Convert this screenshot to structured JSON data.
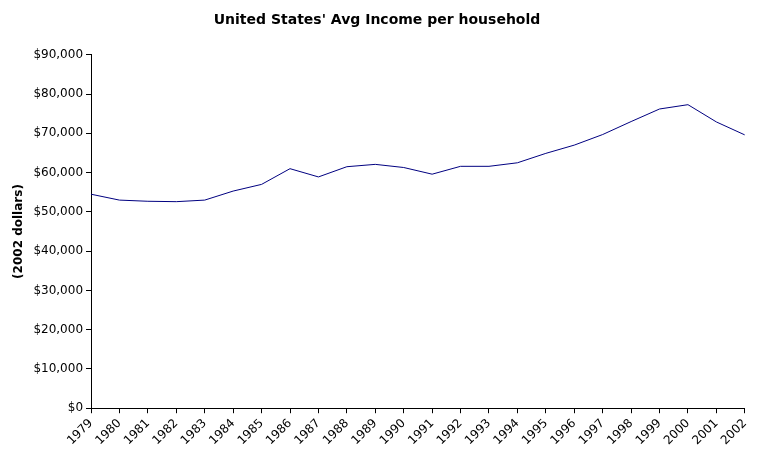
{
  "chart_data": {
    "type": "line",
    "title": "United States' Avg Income per household",
    "y_label": "(2002 dollars)",
    "categories": [
      "1979",
      "1980",
      "1981",
      "1982",
      "1983",
      "1984",
      "1985",
      "1986",
      "1987",
      "1988",
      "1989",
      "1990",
      "1991",
      "1992",
      "1993",
      "1994",
      "1995",
      "1996",
      "1997",
      "1998",
      "1999",
      "2000",
      "2001",
      "2002"
    ],
    "values": [
      54500,
      53000,
      52700,
      52600,
      53000,
      55300,
      57000,
      61000,
      58900,
      61500,
      62100,
      61300,
      59600,
      61600,
      61600,
      62500,
      64900,
      67000,
      69700,
      73000,
      76200,
      77300,
      72900,
      69600
    ],
    "color": "#000080",
    "ylim": [
      0,
      90000
    ],
    "yticks": [
      {
        "value": 0,
        "label": "$0"
      },
      {
        "value": 10000,
        "label": "$10,000"
      },
      {
        "value": 20000,
        "label": "$20,000"
      },
      {
        "value": 30000,
        "label": "$30,000"
      },
      {
        "value": 40000,
        "label": "$40,000"
      },
      {
        "value": 50000,
        "label": "$50,000"
      },
      {
        "value": 60000,
        "label": "$60,000"
      },
      {
        "value": 70000,
        "label": "$70,000"
      },
      {
        "value": 80000,
        "label": "$80,000"
      },
      {
        "value": 90000,
        "label": "$90,000"
      }
    ],
    "grid": false
  }
}
